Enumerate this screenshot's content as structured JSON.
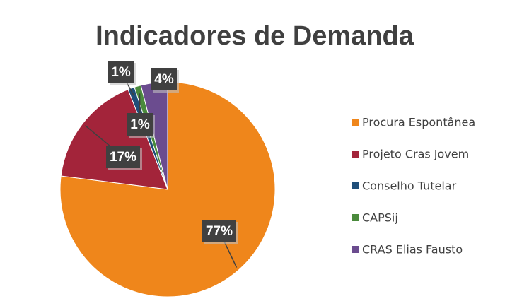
{
  "chart_data": {
    "type": "pie",
    "title": "Indicadores de Demanda",
    "categories": [
      "Procura Espontânea",
      "Projeto Cras Jovem",
      "Conselho Tutelar",
      "CAPSij",
      "CRAS Elias Fausto"
    ],
    "values": [
      77,
      17,
      1,
      1,
      4
    ],
    "value_labels": [
      "77%",
      "17%",
      "1%",
      "1%",
      "4%"
    ],
    "colors": [
      "#ef861b",
      "#a3243a",
      "#1f4e79",
      "#4a8a3c",
      "#6b4c8f"
    ],
    "legend": "right"
  }
}
